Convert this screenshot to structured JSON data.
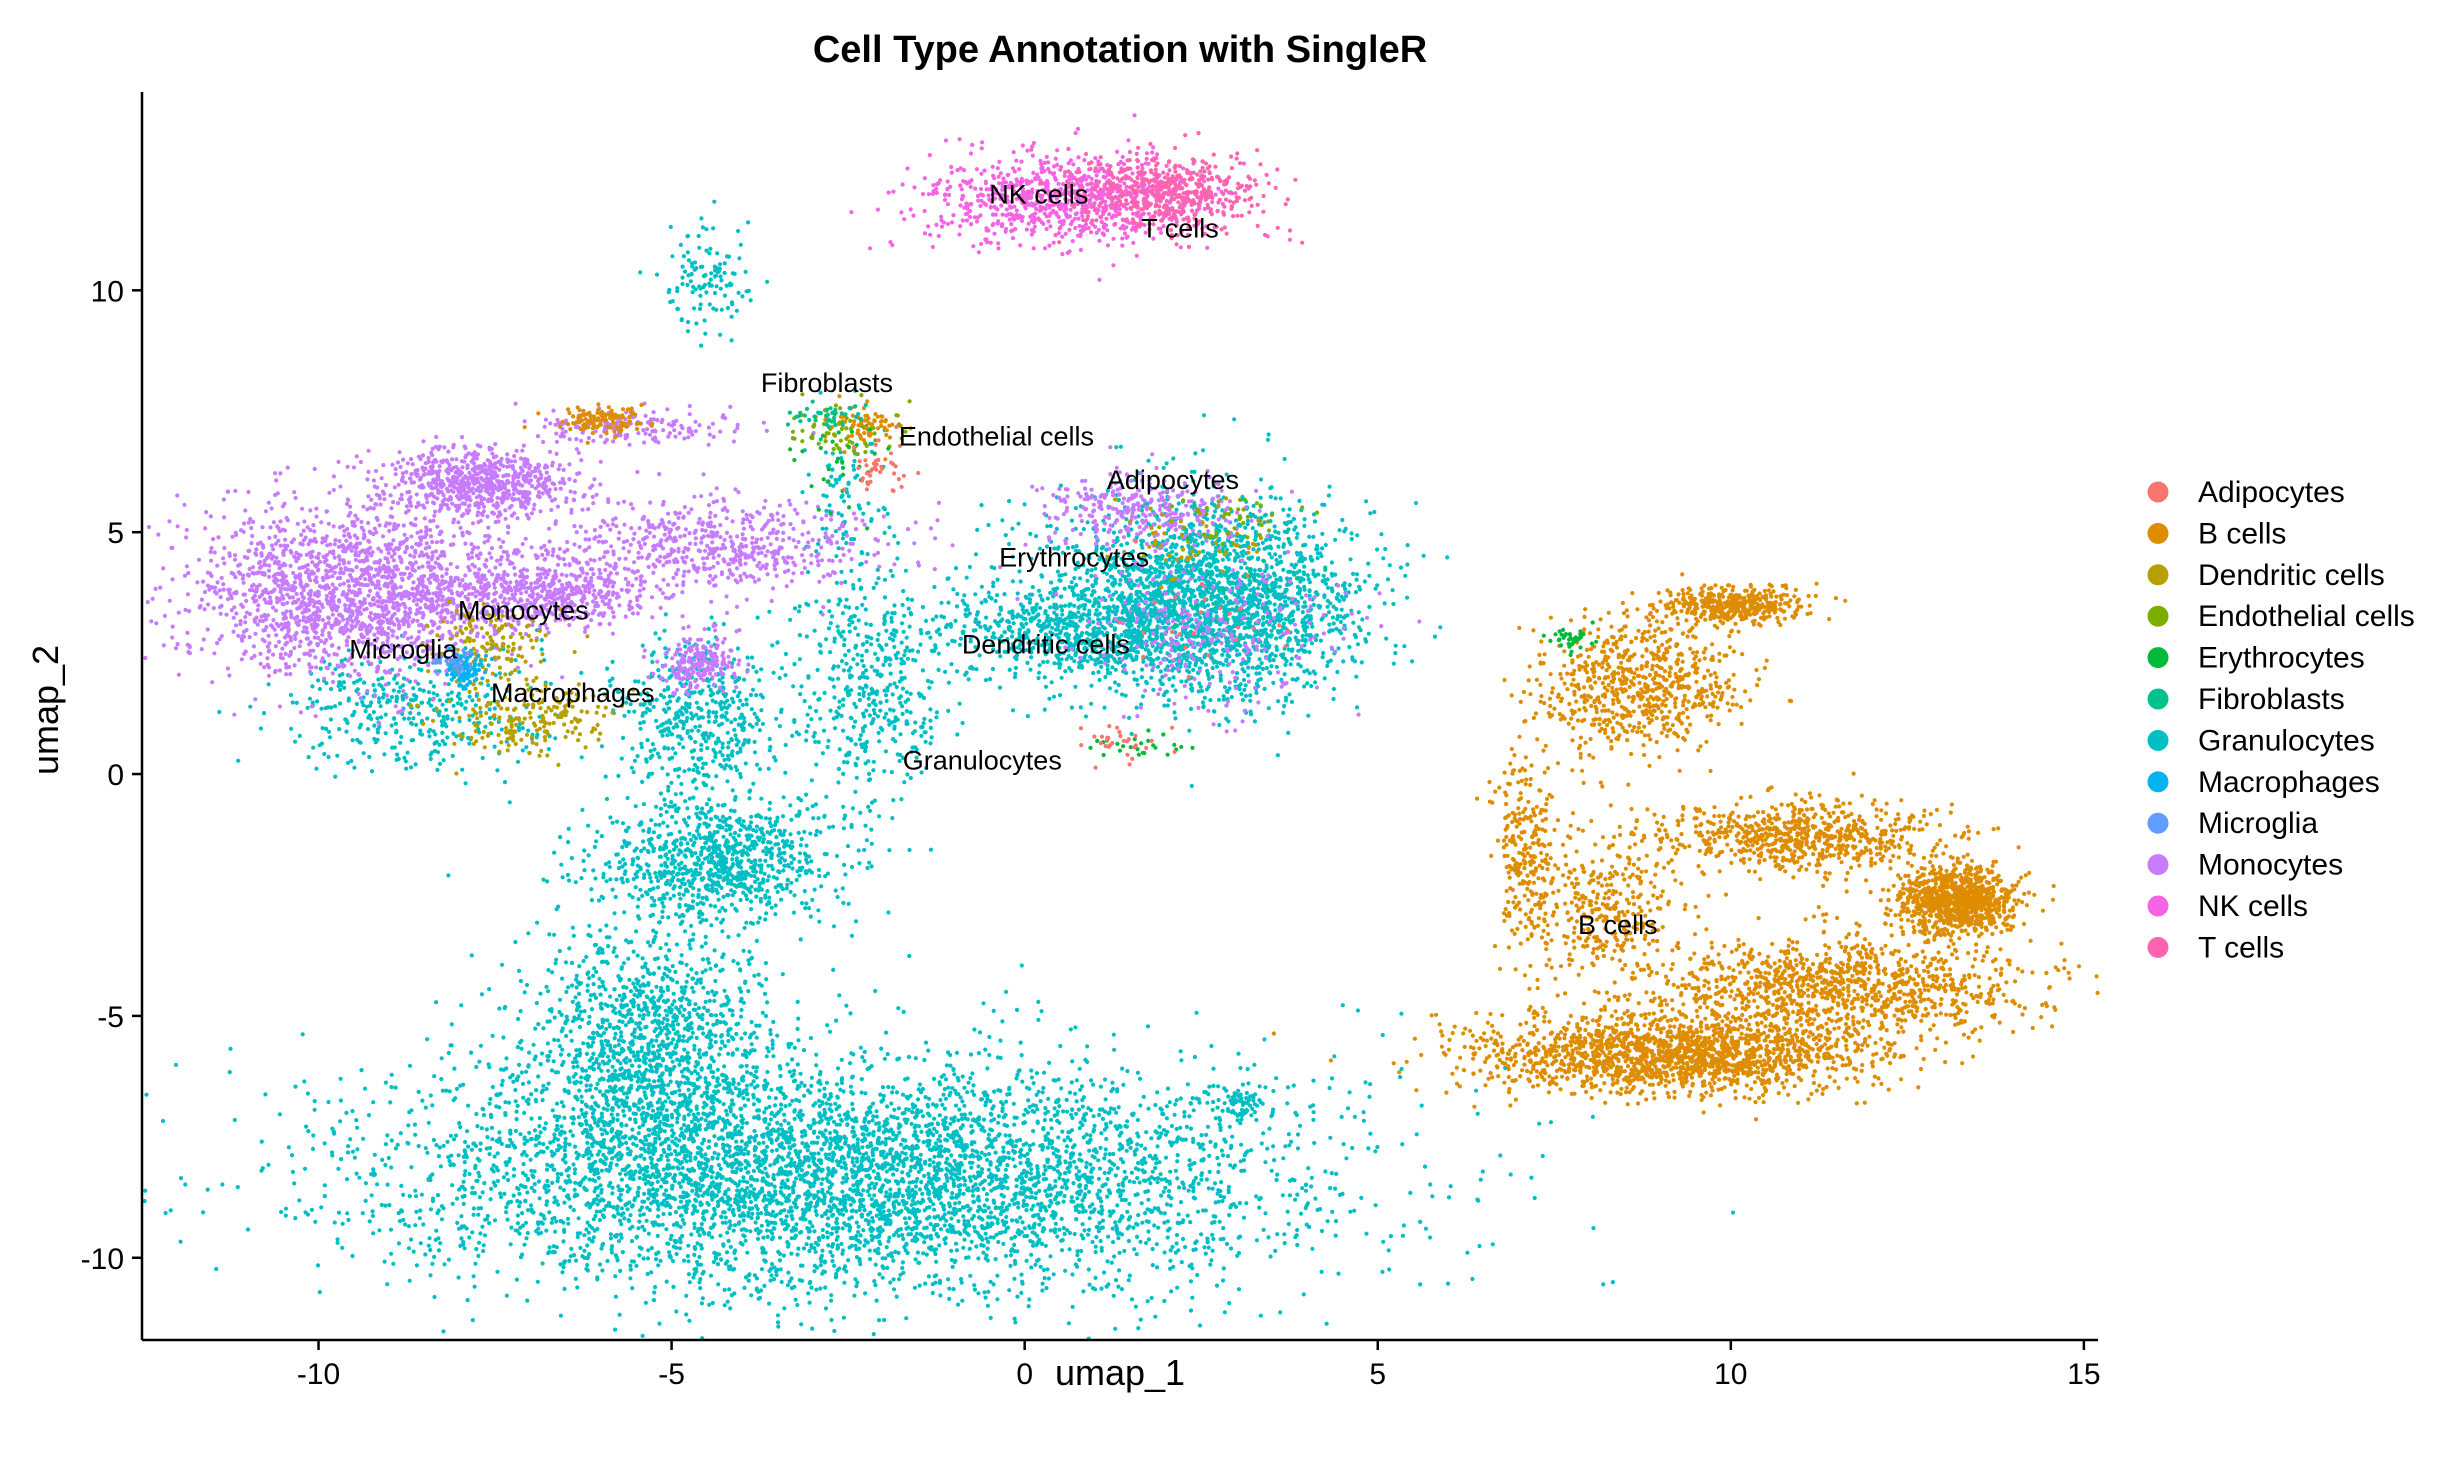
{
  "chart_data": {
    "type": "scatter",
    "title": "Cell Type Annotation with SingleR",
    "xlabel": "umap_1",
    "ylabel": "umap_2",
    "xlim": [
      -12.5,
      15.2
    ],
    "ylim": [
      -11.7,
      14.1
    ],
    "xticks": [
      -10,
      -5,
      0,
      5,
      10,
      15
    ],
    "yticks": [
      -10,
      -5,
      0,
      5,
      10
    ],
    "xtick_labels": [
      "-10",
      "-5",
      "0",
      "5",
      "10",
      "15"
    ],
    "ytick_labels": [
      "-10",
      "-5",
      "0",
      "5",
      "10"
    ],
    "grid": false,
    "legend_position": "right",
    "legend": [
      {
        "name": "Adipocytes",
        "color": "#F8766D"
      },
      {
        "name": "B cells",
        "color": "#DE8C00"
      },
      {
        "name": "Dendritic cells",
        "color": "#B79F00"
      },
      {
        "name": "Endothelial cells",
        "color": "#7CAE00"
      },
      {
        "name": "Erythrocytes",
        "color": "#00BA38"
      },
      {
        "name": "Fibroblasts",
        "color": "#00C08B"
      },
      {
        "name": "Granulocytes",
        "color": "#00BFC4"
      },
      {
        "name": "Macrophages",
        "color": "#00B4F0"
      },
      {
        "name": "Microglia",
        "color": "#619CFF"
      },
      {
        "name": "Monocytes",
        "color": "#C77CFF"
      },
      {
        "name": "NK cells",
        "color": "#F564E3"
      },
      {
        "name": "T cells",
        "color": "#FF64B0"
      }
    ],
    "cluster_labels": [
      {
        "text": "NK cells",
        "x": 0.2,
        "y": 12.0
      },
      {
        "text": "T cells",
        "x": 2.2,
        "y": 11.3
      },
      {
        "text": "Fibroblasts",
        "x": -2.8,
        "y": 8.1
      },
      {
        "text": "Endothelial cells",
        "x": -0.4,
        "y": 7.0
      },
      {
        "text": "Adipocytes",
        "x": 2.1,
        "y": 6.1
      },
      {
        "text": "Erythrocytes",
        "x": 0.7,
        "y": 4.5
      },
      {
        "text": "Monocytes",
        "x": -7.1,
        "y": 3.4
      },
      {
        "text": "Dendritic cells",
        "x": 0.3,
        "y": 2.7
      },
      {
        "text": "Microglia",
        "x": -8.8,
        "y": 2.6
      },
      {
        "text": "Macrophages",
        "x": -6.4,
        "y": 1.7
      },
      {
        "text": "Granulocytes",
        "x": -0.6,
        "y": 0.3
      },
      {
        "text": "B cells",
        "x": 8.4,
        "y": -3.1
      }
    ],
    "clusters": [
      {
        "series": "Granulocytes",
        "n": 5200,
        "cx": -2.6,
        "cy": -8.3,
        "sx": 3.2,
        "sy": 1.2
      },
      {
        "series": "Granulocytes",
        "n": 1300,
        "cx": -5.4,
        "cy": -5.6,
        "sx": 0.9,
        "sy": 1.3
      },
      {
        "series": "Granulocytes",
        "n": 900,
        "cx": -4.4,
        "cy": -1.8,
        "sx": 0.8,
        "sy": 0.6
      },
      {
        "series": "Granulocytes",
        "n": 500,
        "cx": -4.6,
        "cy": 1.2,
        "sx": 0.6,
        "sy": 0.8
      },
      {
        "series": "Granulocytes",
        "n": 450,
        "cx": -2.2,
        "cy": 1.8,
        "sx": 0.5,
        "sy": 1.3
      },
      {
        "series": "Granulocytes",
        "n": 2500,
        "cx": 2.5,
        "cy": 3.6,
        "sx": 1.1,
        "sy": 1.0
      },
      {
        "series": "Granulocytes",
        "n": 500,
        "cx": 0.4,
        "cy": 3.0,
        "sx": 1.0,
        "sy": 0.5
      },
      {
        "series": "Granulocytes",
        "n": 400,
        "cx": -8.6,
        "cy": 1.3,
        "sx": 0.9,
        "sy": 0.6
      },
      {
        "series": "Granulocytes",
        "n": 120,
        "cx": -4.5,
        "cy": 10.2,
        "sx": 0.3,
        "sy": 0.6
      },
      {
        "series": "Granulocytes",
        "n": 70,
        "cx": 3.0,
        "cy": -6.8,
        "sx": 0.2,
        "sy": 0.2
      },
      {
        "series": "Granulocytes",
        "n": 80,
        "cx": -2.5,
        "cy": 6.0,
        "sx": 0.25,
        "sy": 0.8
      },
      {
        "series": "Monocytes",
        "n": 1800,
        "cx": -9.5,
        "cy": 3.8,
        "sx": 1.2,
        "sy": 0.9
      },
      {
        "series": "Monocytes",
        "n": 700,
        "cx": -7.7,
        "cy": 6.0,
        "sx": 0.7,
        "sy": 0.35
      },
      {
        "series": "Monocytes",
        "n": 500,
        "cx": -6.8,
        "cy": 3.7,
        "sx": 0.7,
        "sy": 0.35
      },
      {
        "series": "Monocytes",
        "n": 600,
        "cx": -4.4,
        "cy": 4.7,
        "sx": 1.2,
        "sy": 0.5
      },
      {
        "series": "Monocytes",
        "n": 200,
        "cx": -4.6,
        "cy": 2.3,
        "sx": 0.3,
        "sy": 0.3
      },
      {
        "series": "Monocytes",
        "n": 300,
        "cx": 1.6,
        "cy": 5.5,
        "sx": 0.7,
        "sy": 0.4
      },
      {
        "series": "Monocytes",
        "n": 250,
        "cx": 2.6,
        "cy": 3.0,
        "sx": 0.9,
        "sy": 0.9
      },
      {
        "series": "Monocytes",
        "n": 150,
        "cx": -5.5,
        "cy": 7.2,
        "sx": 0.8,
        "sy": 0.2
      },
      {
        "series": "NK cells",
        "n": 900,
        "cx": 0.6,
        "cy": 11.9,
        "sx": 1.0,
        "sy": 0.45
      },
      {
        "series": "T cells",
        "n": 500,
        "cx": 2.0,
        "cy": 12.0,
        "sx": 0.7,
        "sy": 0.4
      },
      {
        "series": "B cells",
        "n": 1700,
        "cx": 9.2,
        "cy": -5.8,
        "sx": 1.4,
        "sy": 0.4
      },
      {
        "series": "B cells",
        "n": 1100,
        "cx": 11.5,
        "cy": -4.4,
        "sx": 1.4,
        "sy": 0.5
      },
      {
        "series": "B cells",
        "n": 900,
        "cx": 13.2,
        "cy": -2.6,
        "sx": 0.4,
        "sy": 0.35
      },
      {
        "series": "B cells",
        "n": 700,
        "cx": 11.0,
        "cy": -1.3,
        "sx": 1.0,
        "sy": 0.35
      },
      {
        "series": "B cells",
        "n": 700,
        "cx": 8.7,
        "cy": 1.8,
        "sx": 0.7,
        "sy": 0.7
      },
      {
        "series": "B cells",
        "n": 400,
        "cx": 10.0,
        "cy": 3.5,
        "sx": 0.5,
        "sy": 0.2
      },
      {
        "series": "B cells",
        "n": 350,
        "cx": 8.3,
        "cy": -2.8,
        "sx": 0.6,
        "sy": 0.8
      },
      {
        "series": "B cells",
        "n": 250,
        "cx": 7.1,
        "cy": -1.6,
        "sx": 0.2,
        "sy": 1.1
      },
      {
        "series": "B cells",
        "n": 120,
        "cx": -6.0,
        "cy": 7.3,
        "sx": 0.3,
        "sy": 0.15
      },
      {
        "series": "B cells",
        "n": 80,
        "cx": -2.3,
        "cy": 7.2,
        "sx": 0.3,
        "sy": 0.2
      },
      {
        "series": "Dendritic cells",
        "n": 200,
        "cx": -7.0,
        "cy": 1.2,
        "sx": 0.6,
        "sy": 0.4
      },
      {
        "series": "Dendritic cells",
        "n": 120,
        "cx": -7.6,
        "cy": 2.6,
        "sx": 0.4,
        "sy": 0.4
      },
      {
        "series": "Dendritic cells",
        "n": 60,
        "cx": 2.4,
        "cy": 4.8,
        "sx": 0.6,
        "sy": 0.4
      },
      {
        "series": "Endothelial cells",
        "n": 60,
        "cx": -2.6,
        "cy": 7.1,
        "sx": 0.4,
        "sy": 0.3
      },
      {
        "series": "Endothelial cells",
        "n": 40,
        "cx": 3.0,
        "cy": 5.3,
        "sx": 0.5,
        "sy": 0.3
      },
      {
        "series": "Erythrocytes",
        "n": 40,
        "cx": 7.7,
        "cy": 2.8,
        "sx": 0.2,
        "sy": 0.1
      },
      {
        "series": "Erythrocytes",
        "n": 30,
        "cx": -2.6,
        "cy": 6.5,
        "sx": 0.3,
        "sy": 0.6
      },
      {
        "series": "Erythrocytes",
        "n": 25,
        "cx": 1.5,
        "cy": 0.5,
        "sx": 0.3,
        "sy": 0.2
      },
      {
        "series": "Fibroblasts",
        "n": 40,
        "cx": -2.8,
        "cy": 7.4,
        "sx": 0.3,
        "sy": 0.15
      },
      {
        "series": "Fibroblasts",
        "n": 20,
        "cx": 2.8,
        "cy": 4.0,
        "sx": 0.6,
        "sy": 0.6
      },
      {
        "series": "Macrophages",
        "n": 90,
        "cx": -7.9,
        "cy": 2.2,
        "sx": 0.15,
        "sy": 0.2
      },
      {
        "series": "Microglia",
        "n": 35,
        "cx": -8.1,
        "cy": 2.3,
        "sx": 0.15,
        "sy": 0.15
      },
      {
        "series": "Adipocytes",
        "n": 40,
        "cx": -2.1,
        "cy": 6.2,
        "sx": 0.2,
        "sy": 0.3
      },
      {
        "series": "Adipocytes",
        "n": 30,
        "cx": 1.4,
        "cy": 0.6,
        "sx": 0.3,
        "sy": 0.2
      },
      {
        "series": "Adipocytes",
        "n": 25,
        "cx": 2.4,
        "cy": 3.6,
        "sx": 0.6,
        "sy": 0.6
      }
    ]
  }
}
